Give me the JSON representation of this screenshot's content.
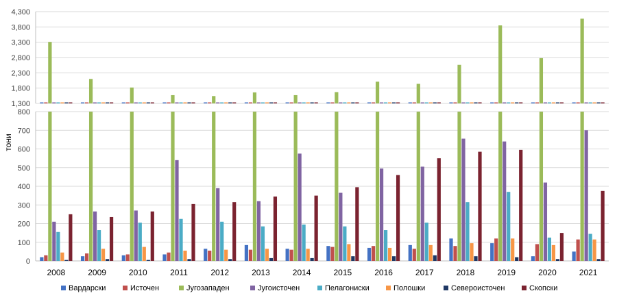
{
  "chart_data": {
    "type": "bar",
    "ylabel": "тони",
    "categories": [
      "2008",
      "2009",
      "2010",
      "2011",
      "2012",
      "2013",
      "2014",
      "2015",
      "2016",
      "2017",
      "2018",
      "2019",
      "2020",
      "2021"
    ],
    "y_axis_upper": {
      "ticks": [
        "1,300",
        "1,800",
        "2,300",
        "2,800",
        "3,300",
        "3,800",
        "4,300"
      ],
      "ylim": [
        1300,
        4300
      ]
    },
    "y_axis_lower": {
      "ticks": [
        "0",
        "100",
        "200",
        "300",
        "400",
        "500",
        "600",
        "700",
        "800"
      ],
      "ylim": [
        0,
        800
      ]
    },
    "legend_position": "bottom",
    "series": [
      {
        "name": "Вардарски",
        "color": "#4472C4",
        "values": [
          20,
          25,
          30,
          35,
          65,
          85,
          65,
          80,
          70,
          85,
          120,
          95,
          25,
          50
        ]
      },
      {
        "name": "Источен",
        "color": "#C0504D",
        "values": [
          30,
          40,
          35,
          45,
          55,
          60,
          60,
          75,
          80,
          65,
          80,
          120,
          90,
          115
        ]
      },
      {
        "name": "Југозападен",
        "color": "#9BBB59",
        "values": [
          3310,
          2100,
          1820,
          1570,
          1540,
          1660,
          1570,
          1670,
          2010,
          1940,
          2560,
          3850,
          2780,
          4070
        ]
      },
      {
        "name": "Југоисточен",
        "color": "#8064A2",
        "values": [
          210,
          265,
          270,
          540,
          390,
          320,
          575,
          365,
          495,
          505,
          655,
          640,
          420,
          700
        ]
      },
      {
        "name": "Пелагониски",
        "color": "#4BACC6",
        "values": [
          155,
          165,
          205,
          225,
          210,
          185,
          195,
          185,
          165,
          205,
          315,
          370,
          125,
          145
        ]
      },
      {
        "name": "Полошки",
        "color": "#F79646",
        "values": [
          45,
          65,
          75,
          55,
          60,
          65,
          65,
          90,
          70,
          85,
          95,
          120,
          85,
          115
        ]
      },
      {
        "name": "Североисточен",
        "color": "#1F3864",
        "values": [
          5,
          10,
          5,
          10,
          10,
          15,
          15,
          25,
          25,
          30,
          25,
          20,
          10,
          10
        ]
      },
      {
        "name": "Скопски",
        "color": "#7B2330",
        "values": [
          250,
          235,
          265,
          305,
          315,
          345,
          350,
          395,
          460,
          550,
          585,
          595,
          150,
          375
        ]
      }
    ]
  }
}
